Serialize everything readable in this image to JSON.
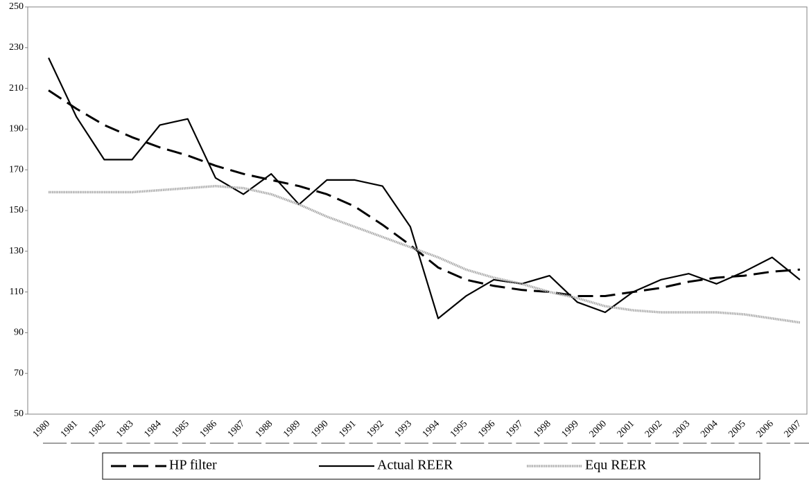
{
  "chart_data": {
    "type": "line",
    "categories": [
      "1980",
      "1981",
      "1982",
      "1983",
      "1984",
      "1985",
      "1986",
      "1987",
      "1988",
      "1989",
      "1990",
      "1991",
      "1992",
      "1993",
      "1994",
      "1995",
      "1996",
      "1997",
      "1998",
      "1999",
      "2000",
      "2001",
      "2002",
      "2003",
      "2004",
      "2005",
      "2006",
      "2007"
    ],
    "series": [
      {
        "name": "HP filter",
        "color": "#000000",
        "style": "dashed",
        "values": [
          209,
          200,
          192,
          186,
          181,
          177,
          172,
          168,
          165,
          162,
          158,
          152,
          143,
          133,
          122,
          116,
          113,
          111,
          110,
          108,
          108,
          110,
          112,
          115,
          117,
          118,
          120,
          121
        ]
      },
      {
        "name": "Actual REER",
        "color": "#000000",
        "style": "solid",
        "values": [
          225,
          196,
          175,
          175,
          192,
          195,
          166,
          158,
          168,
          153,
          165,
          165,
          162,
          142,
          97,
          108,
          116,
          114,
          118,
          105,
          100,
          110,
          116,
          119,
          114,
          120,
          127,
          116
        ]
      },
      {
        "name": "Equ REER",
        "color": "#a6a6a6",
        "style": "dotted",
        "values": [
          159,
          159,
          159,
          159,
          160,
          161,
          162,
          161,
          158,
          153,
          147,
          142,
          137,
          132,
          127,
          121,
          117,
          114,
          110,
          107,
          103,
          101,
          100,
          100,
          100,
          99,
          97,
          95
        ]
      }
    ],
    "ylim": [
      50,
      250
    ],
    "yticks": [
      50,
      70,
      90,
      110,
      130,
      150,
      170,
      190,
      210,
      230,
      250
    ],
    "grid": false
  }
}
